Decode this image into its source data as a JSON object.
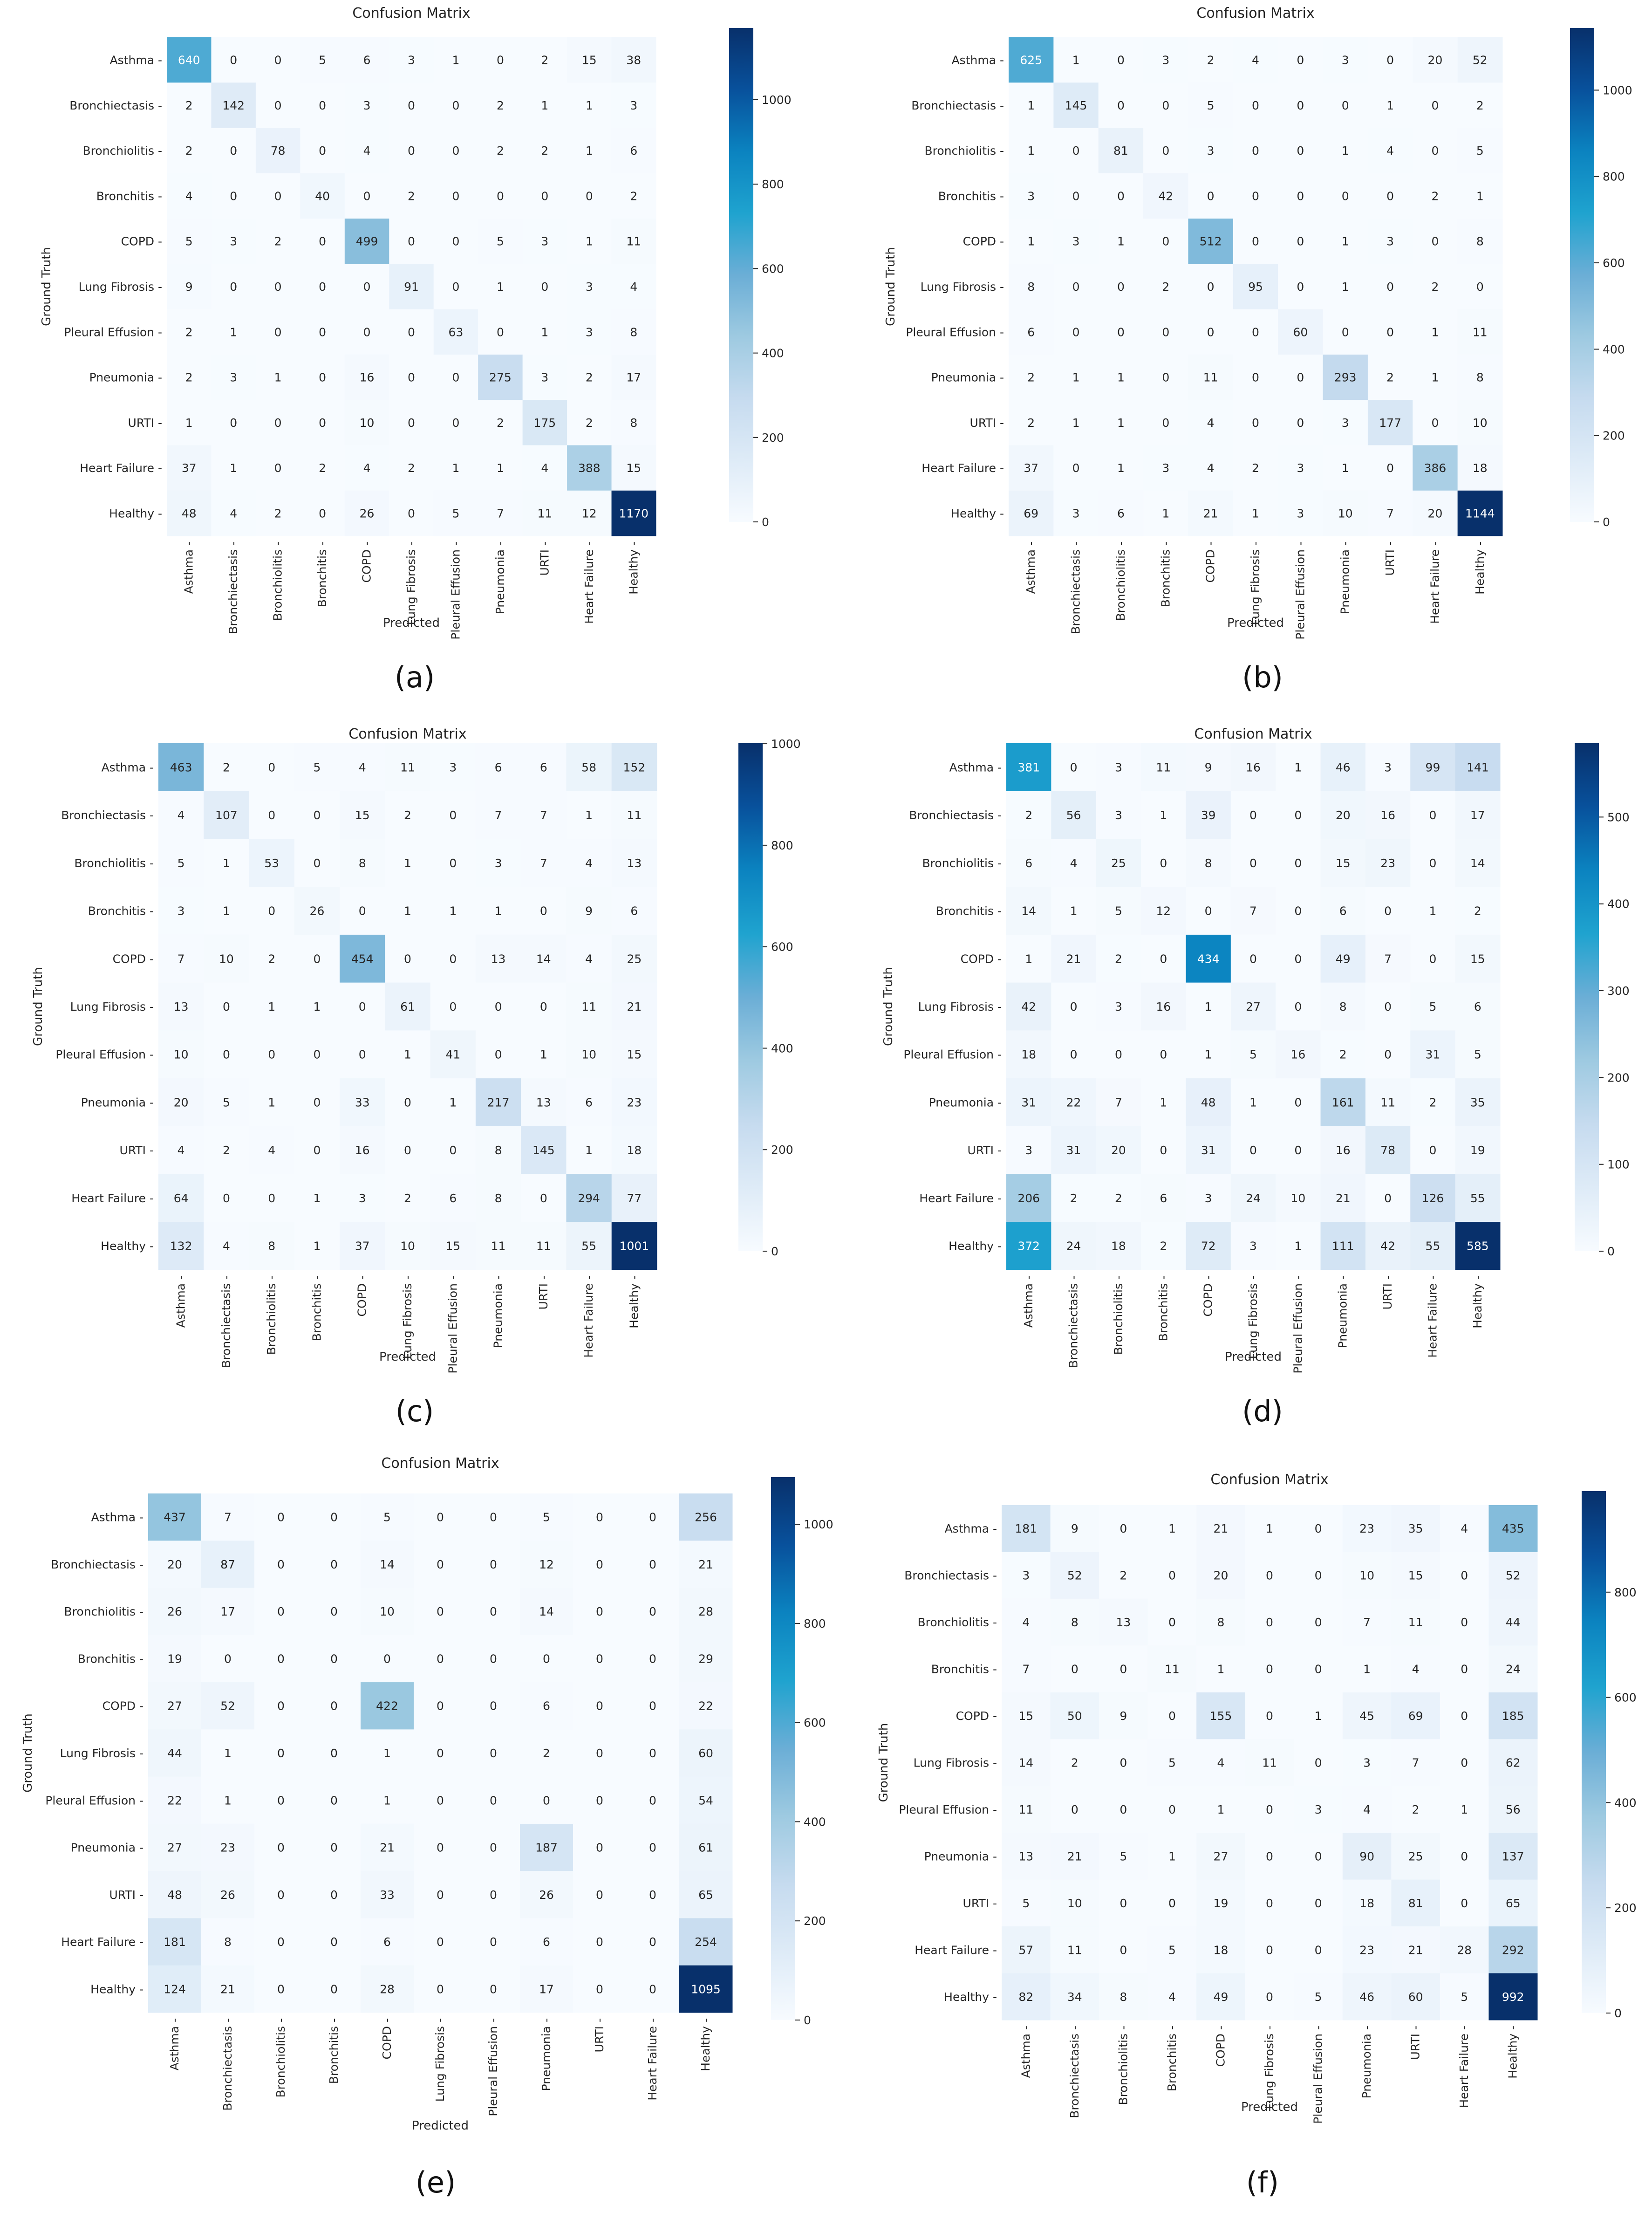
{
  "figure": {
    "class_labels": [
      "Asthma",
      "Bronchiectasis",
      "Bronchiolitis",
      "Bronchitis",
      "COPD",
      "Lung Fibrosis",
      "Pleural Effusion",
      "Pneumonia",
      "URTI",
      "Heart Failure",
      "Healthy"
    ],
    "colormap": [
      "#f7fbff",
      "#deebf7",
      "#c6dbef",
      "#9ecae1",
      "#6baed6",
      "#1fa3cf",
      "#0b83c0",
      "#08519c",
      "#08306b"
    ]
  },
  "chart_data": [
    {
      "type": "heatmap",
      "panel_label": "(a)",
      "title": "Confusion Matrix",
      "xlabel": "Predicted",
      "ylabel": "Ground Truth",
      "colorbar": {
        "min": 0,
        "max": 1170,
        "ticks": [
          0,
          200,
          400,
          600,
          800,
          1000
        ]
      },
      "matrix": [
        [
          640,
          0,
          0,
          5,
          6,
          3,
          1,
          0,
          2,
          15,
          38
        ],
        [
          2,
          142,
          0,
          0,
          3,
          0,
          0,
          2,
          1,
          1,
          3
        ],
        [
          2,
          0,
          78,
          0,
          4,
          0,
          0,
          2,
          2,
          1,
          6
        ],
        [
          4,
          0,
          0,
          40,
          0,
          2,
          0,
          0,
          0,
          0,
          2
        ],
        [
          5,
          3,
          2,
          0,
          499,
          0,
          0,
          5,
          3,
          1,
          11
        ],
        [
          9,
          0,
          0,
          0,
          0,
          91,
          0,
          1,
          0,
          3,
          4
        ],
        [
          2,
          1,
          0,
          0,
          0,
          0,
          63,
          0,
          1,
          3,
          8
        ],
        [
          2,
          3,
          1,
          0,
          16,
          0,
          0,
          275,
          3,
          2,
          17
        ],
        [
          1,
          0,
          0,
          0,
          10,
          0,
          0,
          2,
          175,
          2,
          8
        ],
        [
          37,
          1,
          0,
          2,
          4,
          2,
          1,
          1,
          4,
          388,
          15
        ],
        [
          48,
          4,
          2,
          0,
          26,
          0,
          5,
          7,
          11,
          12,
          1170
        ]
      ]
    },
    {
      "type": "heatmap",
      "panel_label": "(b)",
      "title": "Confusion Matrix",
      "xlabel": "Predicted",
      "ylabel": "Ground Truth",
      "colorbar": {
        "min": 0,
        "max": 1144,
        "ticks": [
          0,
          200,
          400,
          600,
          800,
          1000
        ]
      },
      "matrix": [
        [
          625,
          1,
          0,
          3,
          2,
          4,
          0,
          3,
          0,
          20,
          52
        ],
        [
          1,
          145,
          0,
          0,
          5,
          0,
          0,
          0,
          1,
          0,
          2
        ],
        [
          1,
          0,
          81,
          0,
          3,
          0,
          0,
          1,
          4,
          0,
          5
        ],
        [
          3,
          0,
          0,
          42,
          0,
          0,
          0,
          0,
          0,
          2,
          1
        ],
        [
          1,
          3,
          1,
          0,
          512,
          0,
          0,
          1,
          3,
          0,
          8
        ],
        [
          8,
          0,
          0,
          2,
          0,
          95,
          0,
          1,
          0,
          2,
          0
        ],
        [
          6,
          0,
          0,
          0,
          0,
          0,
          60,
          0,
          0,
          1,
          11
        ],
        [
          2,
          1,
          1,
          0,
          11,
          0,
          0,
          293,
          2,
          1,
          8
        ],
        [
          2,
          1,
          1,
          0,
          4,
          0,
          0,
          3,
          177,
          0,
          10
        ],
        [
          37,
          0,
          1,
          3,
          4,
          2,
          3,
          1,
          0,
          386,
          18
        ],
        [
          69,
          3,
          6,
          1,
          21,
          1,
          3,
          10,
          7,
          20,
          1144
        ]
      ]
    },
    {
      "type": "heatmap",
      "panel_label": "(c)",
      "title": "Confusion Matrix",
      "xlabel": "Predicted",
      "ylabel": "Ground Truth",
      "colorbar": {
        "min": 0,
        "max": 1001,
        "ticks": [
          0,
          200,
          400,
          600,
          800,
          1000
        ]
      },
      "matrix": [
        [
          463,
          2,
          0,
          5,
          4,
          11,
          3,
          6,
          6,
          58,
          152
        ],
        [
          4,
          107,
          0,
          0,
          15,
          2,
          0,
          7,
          7,
          1,
          11
        ],
        [
          5,
          1,
          53,
          0,
          8,
          1,
          0,
          3,
          7,
          4,
          13
        ],
        [
          3,
          1,
          0,
          26,
          0,
          1,
          1,
          1,
          0,
          9,
          6
        ],
        [
          7,
          10,
          2,
          0,
          454,
          0,
          0,
          13,
          14,
          4,
          25
        ],
        [
          13,
          0,
          1,
          1,
          0,
          61,
          0,
          0,
          0,
          11,
          21
        ],
        [
          10,
          0,
          0,
          0,
          0,
          1,
          41,
          0,
          1,
          10,
          15
        ],
        [
          20,
          5,
          1,
          0,
          33,
          0,
          1,
          217,
          13,
          6,
          23
        ],
        [
          4,
          2,
          4,
          0,
          16,
          0,
          0,
          8,
          145,
          1,
          18
        ],
        [
          64,
          0,
          0,
          1,
          3,
          2,
          6,
          8,
          0,
          294,
          77
        ],
        [
          132,
          4,
          8,
          1,
          37,
          10,
          15,
          11,
          11,
          55,
          1001
        ]
      ]
    },
    {
      "type": "heatmap",
      "panel_label": "(d)",
      "title": "Confusion Matrix",
      "xlabel": "Predicted",
      "ylabel": "Ground Truth",
      "colorbar": {
        "min": 0,
        "max": 585,
        "ticks": [
          0,
          100,
          200,
          300,
          400,
          500
        ]
      },
      "matrix": [
        [
          381,
          0,
          3,
          11,
          9,
          16,
          1,
          46,
          3,
          99,
          141
        ],
        [
          2,
          56,
          3,
          1,
          39,
          0,
          0,
          20,
          16,
          0,
          17
        ],
        [
          6,
          4,
          25,
          0,
          8,
          0,
          0,
          15,
          23,
          0,
          14
        ],
        [
          14,
          1,
          5,
          12,
          0,
          7,
          0,
          6,
          0,
          1,
          2
        ],
        [
          1,
          21,
          2,
          0,
          434,
          0,
          0,
          49,
          7,
          0,
          15
        ],
        [
          42,
          0,
          3,
          16,
          1,
          27,
          0,
          8,
          0,
          5,
          6
        ],
        [
          18,
          0,
          0,
          0,
          1,
          5,
          16,
          2,
          0,
          31,
          5
        ],
        [
          31,
          22,
          7,
          1,
          48,
          1,
          0,
          161,
          11,
          2,
          35
        ],
        [
          3,
          31,
          20,
          0,
          31,
          0,
          0,
          16,
          78,
          0,
          19
        ],
        [
          206,
          2,
          2,
          6,
          3,
          24,
          10,
          21,
          0,
          126,
          55
        ],
        [
          372,
          24,
          18,
          2,
          72,
          3,
          1,
          111,
          42,
          55,
          585
        ]
      ]
    },
    {
      "type": "heatmap",
      "panel_label": "(e)",
      "title": "Confusion Matrix",
      "xlabel": "Predicted",
      "ylabel": "Ground Truth",
      "colorbar": {
        "min": 0,
        "max": 1095,
        "ticks": [
          0,
          200,
          400,
          600,
          800,
          1000
        ]
      },
      "matrix": [
        [
          437,
          7,
          0,
          0,
          5,
          0,
          0,
          5,
          0,
          0,
          256
        ],
        [
          20,
          87,
          0,
          0,
          14,
          0,
          0,
          12,
          0,
          0,
          21
        ],
        [
          26,
          17,
          0,
          0,
          10,
          0,
          0,
          14,
          0,
          0,
          28
        ],
        [
          19,
          0,
          0,
          0,
          0,
          0,
          0,
          0,
          0,
          0,
          29
        ],
        [
          27,
          52,
          0,
          0,
          422,
          0,
          0,
          6,
          0,
          0,
          22
        ],
        [
          44,
          1,
          0,
          0,
          1,
          0,
          0,
          2,
          0,
          0,
          60
        ],
        [
          22,
          1,
          0,
          0,
          1,
          0,
          0,
          0,
          0,
          0,
          54
        ],
        [
          27,
          23,
          0,
          0,
          21,
          0,
          0,
          187,
          0,
          0,
          61
        ],
        [
          48,
          26,
          0,
          0,
          33,
          0,
          0,
          26,
          0,
          0,
          65
        ],
        [
          181,
          8,
          0,
          0,
          6,
          0,
          0,
          6,
          0,
          0,
          254
        ],
        [
          124,
          21,
          0,
          0,
          28,
          0,
          0,
          17,
          0,
          0,
          1095
        ]
      ]
    },
    {
      "type": "heatmap",
      "panel_label": "(f)",
      "title": "Confusion Matrix",
      "xlabel": "Predicted",
      "ylabel": "Ground Truth",
      "colorbar": {
        "min": 0,
        "max": 992,
        "ticks": [
          0,
          200,
          400,
          600,
          800
        ]
      },
      "matrix": [
        [
          181,
          9,
          0,
          1,
          21,
          1,
          0,
          23,
          35,
          4,
          435
        ],
        [
          3,
          52,
          2,
          0,
          20,
          0,
          0,
          10,
          15,
          0,
          52
        ],
        [
          4,
          8,
          13,
          0,
          8,
          0,
          0,
          7,
          11,
          0,
          44
        ],
        [
          7,
          0,
          0,
          11,
          1,
          0,
          0,
          1,
          4,
          0,
          24
        ],
        [
          15,
          50,
          9,
          0,
          155,
          0,
          1,
          45,
          69,
          0,
          185
        ],
        [
          14,
          2,
          0,
          5,
          4,
          11,
          0,
          3,
          7,
          0,
          62
        ],
        [
          11,
          0,
          0,
          0,
          1,
          0,
          3,
          4,
          2,
          1,
          56
        ],
        [
          13,
          21,
          5,
          1,
          27,
          0,
          0,
          90,
          25,
          0,
          137
        ],
        [
          5,
          10,
          0,
          0,
          19,
          0,
          0,
          18,
          81,
          0,
          65
        ],
        [
          57,
          11,
          0,
          5,
          18,
          0,
          0,
          23,
          21,
          28,
          292
        ],
        [
          82,
          34,
          8,
          4,
          49,
          0,
          5,
          46,
          60,
          5,
          992
        ]
      ]
    }
  ]
}
